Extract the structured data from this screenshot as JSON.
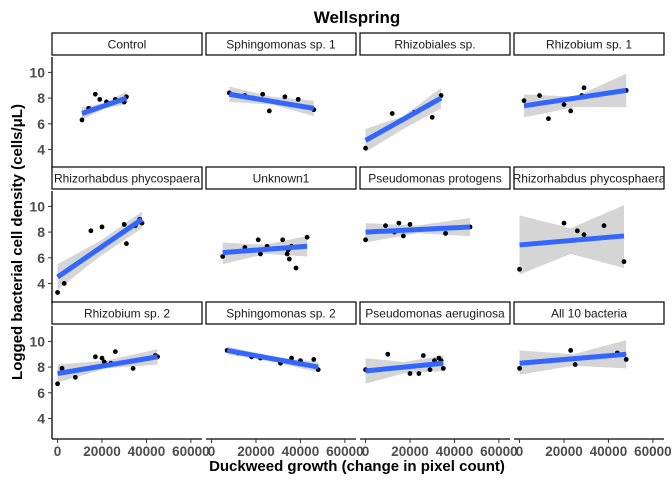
{
  "chart_data": {
    "type": "scatter",
    "title": "Wellspring",
    "xlabel": "Duckweed growth (change in pixel count)",
    "ylabel": "Logged bacterial cell density (cells/μL)",
    "x_ticks": [
      "0",
      "20000",
      "40000",
      "60000"
    ],
    "x_tick_values": [
      0,
      20000,
      40000,
      60000
    ],
    "xlim": [
      -2500,
      65000
    ],
    "y_ticks": [
      "4",
      "6",
      "8",
      "10"
    ],
    "y_tick_values": [
      4,
      6,
      8,
      10
    ],
    "ylim": [
      2.4,
      11.2
    ],
    "grid": false,
    "facets": "4 columns x 3 rows, shared axes",
    "colors": {
      "point": "#000000",
      "fit_line": "#3366FF",
      "ribbon": "#d3d3d3"
    },
    "panels": [
      {
        "label": "Control",
        "points": [
          [
            11000,
            6.3
          ],
          [
            14000,
            7.2
          ],
          [
            17000,
            8.3
          ],
          [
            19000,
            7.9
          ],
          [
            22000,
            7.7
          ],
          [
            24000,
            7.6
          ],
          [
            26000,
            7.9
          ],
          [
            28000,
            7.8
          ],
          [
            30000,
            7.7
          ],
          [
            31000,
            8.1
          ]
        ],
        "fit": {
          "x": [
            11000,
            31000
          ],
          "y": [
            6.8,
            8.0
          ]
        },
        "ribbon": {
          "x": [
            11000,
            21000,
            31000
          ],
          "upper": [
            7.3,
            7.6,
            8.5
          ],
          "lower": [
            6.3,
            7.2,
            7.5
          ]
        }
      },
      {
        "label": "Sphingomonas sp. 1",
        "points": [
          [
            8000,
            8.4
          ],
          [
            15000,
            8.2
          ],
          [
            19000,
            8.0
          ],
          [
            23000,
            8.3
          ],
          [
            26000,
            7.0
          ],
          [
            33000,
            8.1
          ],
          [
            39000,
            7.9
          ],
          [
            46000,
            7.1
          ]
        ],
        "fit": {
          "x": [
            8000,
            46000
          ],
          "y": [
            8.3,
            7.2
          ]
        },
        "ribbon": {
          "x": [
            8000,
            27000,
            46000
          ],
          "upper": [
            8.9,
            8.1,
            7.8
          ],
          "lower": [
            7.7,
            7.5,
            6.6
          ]
        }
      },
      {
        "label": "Rhizobiales sp.",
        "points": [
          [
            0,
            4.1
          ],
          [
            12000,
            6.8
          ],
          [
            22000,
            6.9
          ],
          [
            28000,
            7.4
          ],
          [
            30000,
            6.5
          ],
          [
            34000,
            8.2
          ]
        ],
        "fit": {
          "x": [
            0,
            34000
          ],
          "y": [
            4.7,
            8.0
          ]
        },
        "ribbon": {
          "x": [
            0,
            17000,
            34000
          ],
          "upper": [
            5.6,
            6.6,
            8.8
          ],
          "lower": [
            3.8,
            5.6,
            7.2
          ]
        }
      },
      {
        "label": "Rhizobium sp. 1",
        "points": [
          [
            2000,
            7.8
          ],
          [
            9000,
            8.2
          ],
          [
            13000,
            6.4
          ],
          [
            20000,
            7.5
          ],
          [
            23000,
            7.0
          ],
          [
            28000,
            8.2
          ],
          [
            29000,
            8.8
          ],
          [
            48000,
            8.6
          ]
        ],
        "fit": {
          "x": [
            2000,
            48000
          ],
          "y": [
            7.4,
            8.6
          ]
        },
        "ribbon": {
          "x": [
            2000,
            25000,
            48000
          ],
          "upper": [
            8.3,
            8.1,
            9.9
          ],
          "lower": [
            6.5,
            7.3,
            7.3
          ]
        }
      },
      {
        "label": "Rhizorhabdus phycospaera",
        "points": [
          [
            0,
            3.3
          ],
          [
            3000,
            4.0
          ],
          [
            15000,
            8.1
          ],
          [
            20000,
            8.4
          ],
          [
            30000,
            8.6
          ],
          [
            31000,
            7.1
          ],
          [
            35000,
            8.5
          ],
          [
            37000,
            9.0
          ],
          [
            38000,
            8.7
          ]
        ],
        "fit": {
          "x": [
            0,
            38000
          ],
          "y": [
            4.5,
            9.0
          ]
        },
        "ribbon": {
          "x": [
            0,
            19000,
            38000
          ],
          "upper": [
            5.5,
            7.3,
            9.6
          ],
          "lower": [
            3.5,
            6.1,
            8.3
          ]
        }
      },
      {
        "label": "Unknown1",
        "points": [
          [
            5000,
            6.1
          ],
          [
            15000,
            6.8
          ],
          [
            21000,
            7.4
          ],
          [
            22000,
            6.3
          ],
          [
            25000,
            6.9
          ],
          [
            28000,
            6.7
          ],
          [
            32000,
            7.4
          ],
          [
            34000,
            6.3
          ],
          [
            34500,
            6.6
          ],
          [
            35000,
            5.9
          ],
          [
            36000,
            6.9
          ],
          [
            38000,
            5.2
          ],
          [
            43000,
            7.6
          ]
        ],
        "fit": {
          "x": [
            5000,
            43000
          ],
          "y": [
            6.4,
            6.9
          ]
        },
        "ribbon": {
          "x": [
            5000,
            24000,
            43000
          ],
          "upper": [
            7.2,
            7.0,
            7.7
          ],
          "lower": [
            5.5,
            6.3,
            6.1
          ]
        }
      },
      {
        "label": "Pseudomonas protogens",
        "points": [
          [
            0,
            7.4
          ],
          [
            9000,
            8.5
          ],
          [
            13000,
            8.0
          ],
          [
            15000,
            8.7
          ],
          [
            17000,
            7.7
          ],
          [
            20000,
            8.6
          ],
          [
            36000,
            7.9
          ],
          [
            47000,
            8.4
          ]
        ],
        "fit": {
          "x": [
            0,
            47000
          ],
          "y": [
            8.0,
            8.4
          ]
        },
        "ribbon": {
          "x": [
            0,
            23000,
            47000
          ],
          "upper": [
            8.7,
            8.5,
            9.1
          ],
          "lower": [
            7.2,
            7.9,
            7.7
          ]
        }
      },
      {
        "label": "Rhizorhabdus phycosphaera",
        "points": [
          [
            0,
            5.1
          ],
          [
            20000,
            8.7
          ],
          [
            26000,
            8.1
          ],
          [
            29000,
            7.8
          ],
          [
            38000,
            8.5
          ],
          [
            47000,
            5.7
          ]
        ],
        "fit": {
          "x": [
            0,
            47000
          ],
          "y": [
            7.0,
            7.7
          ]
        },
        "ribbon": {
          "x": [
            0,
            23000,
            47000
          ],
          "upper": [
            9.3,
            8.3,
            10.1
          ],
          "lower": [
            4.7,
            6.3,
            5.2
          ]
        }
      },
      {
        "label": "Rhizobium sp. 2",
        "points": [
          [
            0,
            6.7
          ],
          [
            2000,
            7.9
          ],
          [
            8000,
            7.2
          ],
          [
            17000,
            8.8
          ],
          [
            20000,
            8.7
          ],
          [
            21000,
            8.4
          ],
          [
            24000,
            8.3
          ],
          [
            26000,
            9.2
          ],
          [
            34000,
            7.9
          ],
          [
            44000,
            8.9
          ],
          [
            45000,
            8.8
          ]
        ],
        "fit": {
          "x": [
            0,
            45000
          ],
          "y": [
            7.5,
            8.8
          ]
        },
        "ribbon": {
          "x": [
            0,
            22000,
            45000
          ],
          "upper": [
            8.2,
            8.5,
            9.4
          ],
          "lower": [
            6.8,
            7.9,
            8.2
          ]
        }
      },
      {
        "label": "Sphingomonas sp. 2",
        "points": [
          [
            7000,
            9.3
          ],
          [
            10000,
            9.2
          ],
          [
            12000,
            9.1
          ],
          [
            18000,
            8.8
          ],
          [
            22000,
            8.7
          ],
          [
            31000,
            8.3
          ],
          [
            36000,
            8.7
          ],
          [
            40000,
            8.5
          ],
          [
            46000,
            8.6
          ],
          [
            48000,
            7.8
          ]
        ],
        "fit": {
          "x": [
            7000,
            48000
          ],
          "y": [
            9.3,
            8.0
          ]
        },
        "ribbon": {
          "x": [
            7000,
            28000,
            48000
          ],
          "upper": [
            9.6,
            8.8,
            8.4
          ],
          "lower": [
            9.0,
            8.4,
            7.6
          ]
        }
      },
      {
        "label": "Pseudomonas aeruginosa",
        "points": [
          [
            0,
            7.8
          ],
          [
            10000,
            9.0
          ],
          [
            20000,
            7.5
          ],
          [
            24000,
            7.5
          ],
          [
            26000,
            8.9
          ],
          [
            29000,
            7.8
          ],
          [
            31000,
            8.5
          ],
          [
            33000,
            8.7
          ],
          [
            34000,
            8.5
          ],
          [
            35000,
            7.9
          ]
        ],
        "fit": {
          "x": [
            0,
            35000
          ],
          "y": [
            7.7,
            8.3
          ]
        },
        "ribbon": {
          "x": [
            0,
            17000,
            35000
          ],
          "upper": [
            8.7,
            8.4,
            8.9
          ],
          "lower": [
            6.7,
            7.5,
            7.7
          ]
        }
      },
      {
        "label": "All 10 bacteria",
        "points": [
          [
            0,
            7.9
          ],
          [
            23000,
            9.3
          ],
          [
            25000,
            8.2
          ],
          [
            44000,
            9.1
          ],
          [
            48000,
            8.6
          ]
        ],
        "fit": {
          "x": [
            0,
            48000
          ],
          "y": [
            8.3,
            9.0
          ]
        },
        "ribbon": {
          "x": [
            0,
            24000,
            48000
          ],
          "upper": [
            9.3,
            9.0,
            10.1
          ],
          "lower": [
            7.4,
            8.1,
            7.9
          ]
        }
      }
    ]
  }
}
